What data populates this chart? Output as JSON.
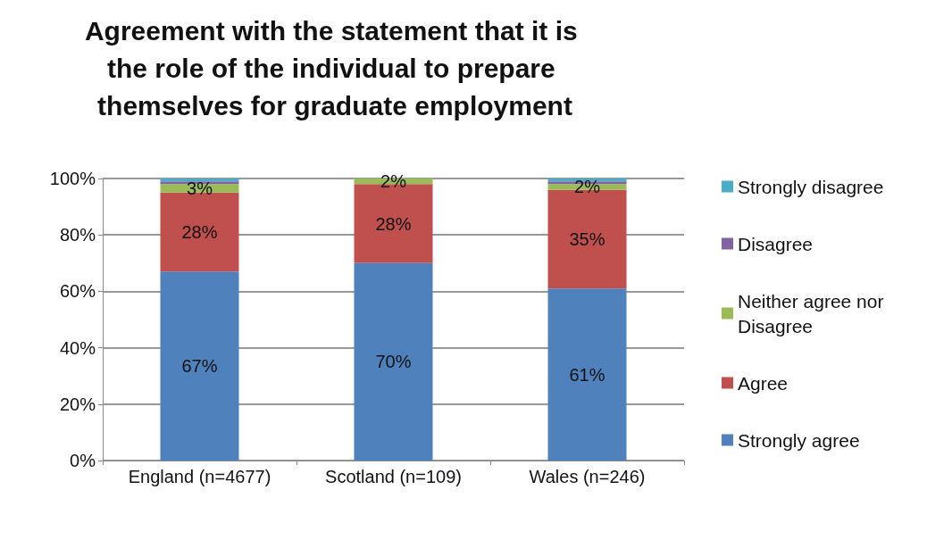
{
  "chart_data": {
    "type": "bar",
    "title": "Agreement with the statement that it is the role of the individual to prepare themselves for graduate employment",
    "categories": [
      "England (n=4677)",
      "Scotland (n=109)",
      "Wales (n=246)"
    ],
    "stacked": true,
    "series": [
      {
        "name": "Strongly agree",
        "color": "#4f81bd",
        "values": [
          67,
          70,
          61
        ],
        "value_labels": [
          "67%",
          "70%",
          "61%"
        ]
      },
      {
        "name": "Agree",
        "color": "#c0504d",
        "values": [
          28,
          28,
          35
        ],
        "value_labels": [
          "28%",
          "28%",
          "35%"
        ]
      },
      {
        "name": "Neither agree nor Disagree",
        "color": "#9bbb59",
        "values": [
          3,
          2,
          2
        ],
        "value_labels": [
          "3%",
          "2%",
          "2%"
        ]
      },
      {
        "name": "Disagree",
        "color": "#8064a2",
        "values": [
          1,
          0,
          1
        ],
        "value_labels": [
          null,
          null,
          null
        ]
      },
      {
        "name": "Strongly disagree",
        "color": "#4bacc6",
        "values": [
          1,
          0,
          1
        ],
        "value_labels": [
          null,
          null,
          null
        ]
      }
    ],
    "ylim": [
      0,
      100
    ],
    "yticks": [
      {
        "value": 0,
        "label": "0%"
      },
      {
        "value": 20,
        "label": "20%"
      },
      {
        "value": 40,
        "label": "40%"
      },
      {
        "value": 60,
        "label": "60%"
      },
      {
        "value": 80,
        "label": "80%"
      },
      {
        "value": 100,
        "label": "100%"
      }
    ],
    "grid": "y",
    "legend": "right"
  }
}
